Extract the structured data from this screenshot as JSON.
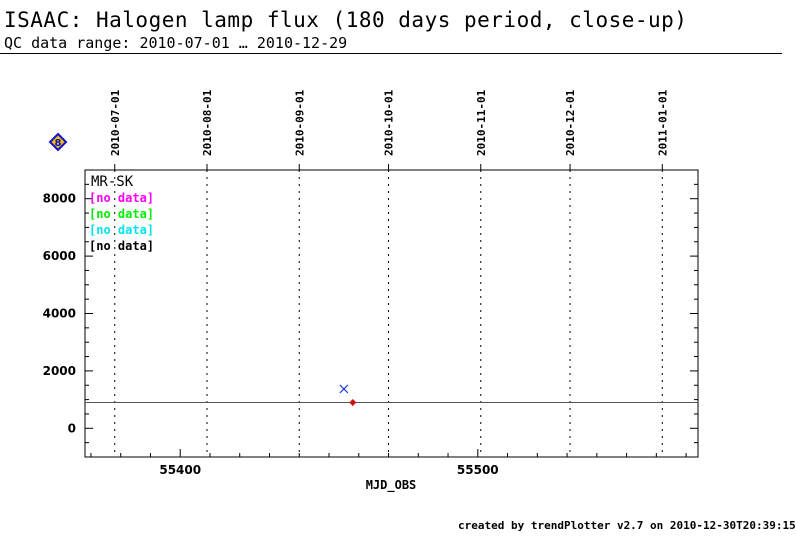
{
  "header": {
    "title": "ISAAC: Halogen lamp flux (180 days period, close-up)",
    "subtitle": "QC data range: 2010-07-01 … 2010-12-29"
  },
  "footer": {
    "credit": "created by trendPlotter v2.7 on 2010-12-30T20:39:15"
  },
  "badge": {
    "glyph": "8",
    "color": "#1010d0",
    "fill": "#f0c000"
  },
  "chart_data": {
    "type": "scatter",
    "xlabel": "MJD_OBS",
    "ylabel": "",
    "xlim": [
      55368,
      55574
    ],
    "ylim": [
      -1000,
      9000
    ],
    "x_ticks": [
      55400,
      55500
    ],
    "y_ticks": [
      0,
      2000,
      4000,
      6000,
      8000
    ],
    "date_lines": [
      {
        "label": "2010-07-01",
        "mjd": 55378
      },
      {
        "label": "2010-08-01",
        "mjd": 55409
      },
      {
        "label": "2010-09-01",
        "mjd": 55440
      },
      {
        "label": "2010-10-01",
        "mjd": 55470
      },
      {
        "label": "2010-11-01",
        "mjd": 55501
      },
      {
        "label": "2010-12-01",
        "mjd": 55531
      },
      {
        "label": "2011-01-01",
        "mjd": 55562
      }
    ],
    "reference_line": {
      "y": 900,
      "color": "#555555"
    },
    "legend": {
      "title": "MR-SK",
      "entries": [
        {
          "label": "[no data]",
          "color": "#ff00ff"
        },
        {
          "label": "[no data]",
          "color": "#00ee00"
        },
        {
          "label": "[no data]",
          "color": "#00e5ee"
        },
        {
          "label": "[no data]",
          "color": "#000000"
        }
      ]
    },
    "series": [
      {
        "marker": "cross",
        "color": "#1f3fd0",
        "points": [
          {
            "x": 55455,
            "y": 1370
          }
        ]
      },
      {
        "marker": "diamond",
        "color": "#d01010",
        "points": [
          {
            "x": 55458,
            "y": 900
          }
        ]
      }
    ],
    "grid_style": "dotted vertical lines at month starts"
  }
}
